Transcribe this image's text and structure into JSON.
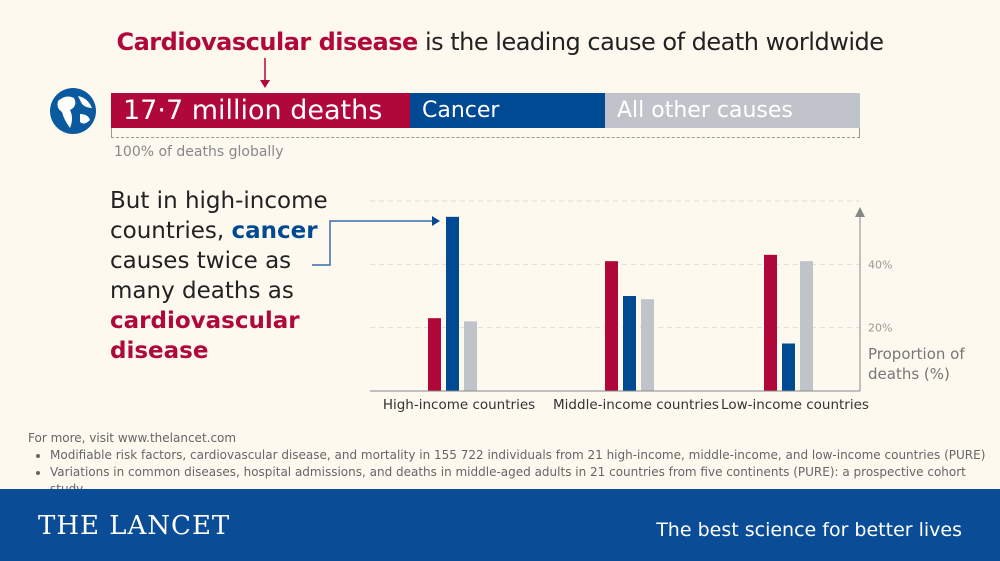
{
  "title": {
    "highlight": "Cardiovascular disease",
    "rest": " is the leading cause of death worldwide"
  },
  "global_bar": {
    "segments": [
      {
        "label": "17·7 million deaths",
        "color": "#b0083a"
      },
      {
        "label": "Cancer",
        "color": "#004a93"
      },
      {
        "label": "All other causes",
        "color": "#c0c4ca"
      }
    ],
    "note": "100% of deaths globally"
  },
  "lead": {
    "p1": "But in high-income countries, ",
    "cancer": "cancer",
    "p2": " causes twice as many deaths as ",
    "cvd": "cardiovascular disease"
  },
  "chart_data": {
    "type": "bar",
    "categories": [
      "High-income countries",
      "Middle-income countries",
      "Low-income countries"
    ],
    "series": [
      {
        "key": "cardiovascular",
        "color": "#b0083a",
        "values": [
          23,
          41,
          43
        ]
      },
      {
        "key": "cancer",
        "color": "#004a93",
        "values": [
          55,
          30,
          15
        ]
      },
      {
        "key": "other",
        "color": "#c0c4ca",
        "values": [
          22,
          29,
          41
        ]
      }
    ],
    "ylabel": "Proportion of deaths (%)",
    "yticks": [
      "20%",
      "40%"
    ],
    "ytick_values": [
      20,
      40
    ],
    "ylim": [
      0,
      60
    ],
    "grid": true
  },
  "refs": {
    "intro": "For more, visit www.thelancet.com",
    "items": [
      "Modifiable risk factors, cardiovascular disease, and mortality in 155 722 individuals from 21 high-income, middle-income, and low-income countries (PURE)",
      "Variations in common diseases, hospital admissions, and deaths in middle-aged adults in 21 countries from five continents (PURE): a prospective cohort study"
    ]
  },
  "footer": {
    "logo": "THE LANCET",
    "tagline": "The best science for better lives"
  }
}
